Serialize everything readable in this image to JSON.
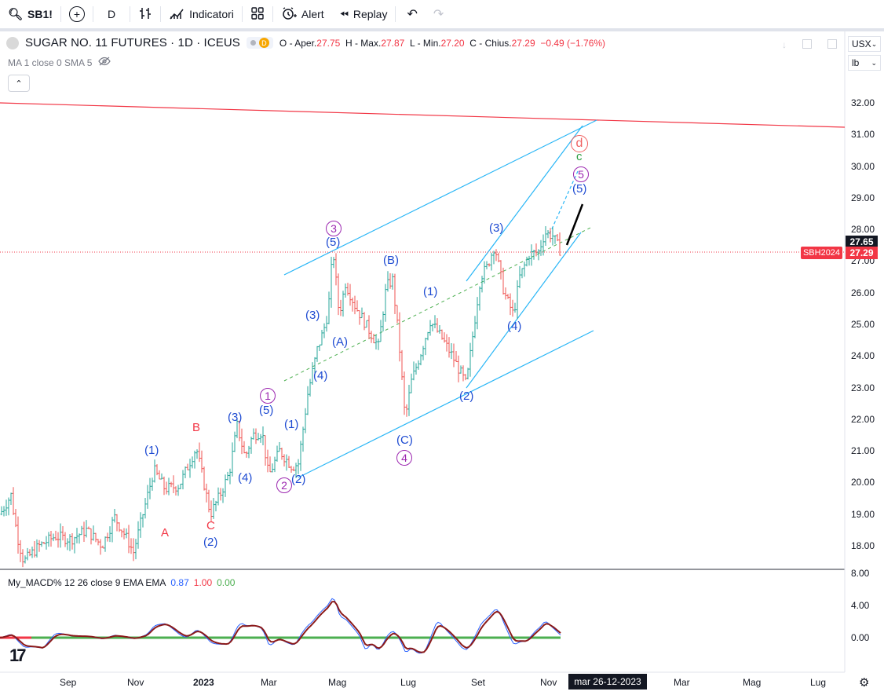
{
  "toolbar": {
    "symbol": "SB1!",
    "interval": "D",
    "indicators_label": "Indicatori",
    "alert_label": "Alert",
    "replay_label": "Replay"
  },
  "legend": {
    "title": "SUGAR NO. 11 FUTURES · 1D · ICEUS",
    "badge_letter": "D",
    "open_label": "O - Aper.",
    "open_value": "27.75",
    "high_label": "H - Max.",
    "high_value": "27.87",
    "low_label": "L - Min.",
    "low_value": "27.20",
    "close_label": "C - Chius.",
    "close_value": "27.29",
    "change_value": "−0.49 (−1.76%)"
  },
  "ma_legend": {
    "text": "MA 1 close 0 SMA 5"
  },
  "currency": {
    "value": "USX"
  },
  "unit": {
    "value": "lb"
  },
  "price_axis": {
    "ticks": [
      "32.00",
      "31.00",
      "30.00",
      "29.00",
      "28.00",
      "27.00",
      "26.00",
      "25.00",
      "24.00",
      "23.00",
      "22.00",
      "21.00",
      "20.00",
      "19.00",
      "18.00"
    ],
    "badge_top": "27.65",
    "badge_bottom": "27.29",
    "contract": "SBH2024"
  },
  "macd": {
    "name": "My_MACD% 12 26 close 9 EMA EMA",
    "v1": "0.87",
    "v2": "1.00",
    "v3": "0.00",
    "ticks": [
      "8.00",
      "4.00",
      "0.00"
    ]
  },
  "time_axis": {
    "labels": [
      "Sep",
      "Nov",
      "2023",
      "Mar",
      "Mag",
      "Lug",
      "Set",
      "Nov",
      "Mar",
      "Mag",
      "Lug"
    ],
    "crosshair_date": "mar 26-12-2023"
  },
  "wave_labels": {
    "n1": "(1)",
    "B": "B",
    "A": "A",
    "C": "C",
    "n2": "(2)",
    "n3": "(3)",
    "n4": "(4)",
    "n5": "(5)",
    "c1": "1",
    "n1b": "(1)",
    "n2b": "(2)",
    "c2": "2",
    "n4b": "(4)",
    "n3b": "(3)",
    "nA": "(A)",
    "n5b": "(5)",
    "c3": "3",
    "nB": "(B)",
    "nC": "(C)",
    "c4": "4",
    "n1c": "(1)",
    "n2c": "(2)",
    "n4c": "(4)",
    "n3c": "(3)",
    "n5c": "(5)",
    "c5": "5",
    "lc": "c",
    "cd": "d"
  },
  "colors": {
    "up": "#26a69a",
    "down": "#ef5350",
    "channel": "#29b6f6",
    "resistance": "#f23645",
    "wave_blue": "#1e4bd2",
    "wave_red": "#f23645",
    "wave_purple": "#9c27b0",
    "wave_green": "#2e9e43",
    "macd_line": "#8b1a1a",
    "signal_line": "#2962ff",
    "zero_line": "#4caf50"
  }
}
